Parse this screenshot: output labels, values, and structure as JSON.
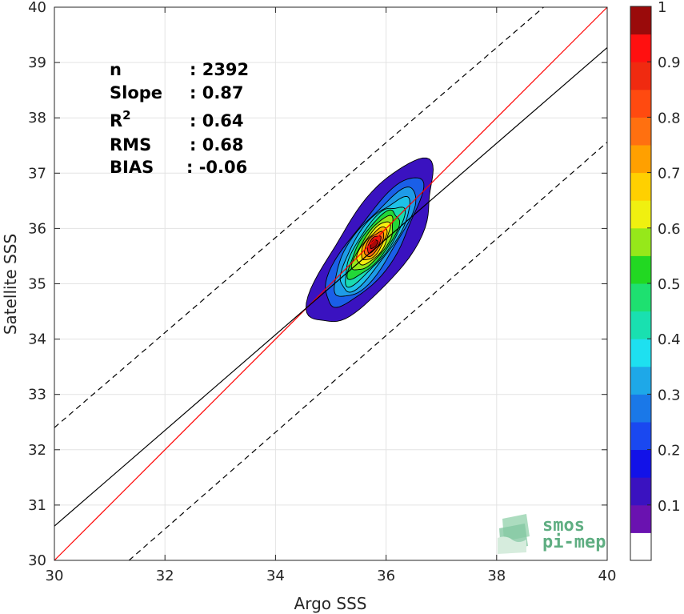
{
  "chart_data": {
    "type": "scatter",
    "subtype": "density-contour",
    "xlabel": "Argo SSS",
    "ylabel": "Satellite SSS",
    "xlim": [
      30,
      40
    ],
    "ylim": [
      30,
      40
    ],
    "xticks": [
      30,
      32,
      34,
      36,
      38,
      40
    ],
    "yticks": [
      30,
      31,
      32,
      33,
      34,
      35,
      36,
      37,
      38,
      39,
      40
    ],
    "grid": true,
    "stats": [
      {
        "label": "n",
        "value": ": 2392"
      },
      {
        "label": "Slope",
        "value": ": 0.87"
      },
      {
        "label": "R",
        "sup": "2",
        "value": ": 0.64"
      },
      {
        "label": "RMS",
        "value": ": 0.68"
      },
      {
        "label": "BIAS",
        "value": ": -0.06"
      }
    ],
    "lines": [
      {
        "name": "one-to-one",
        "color": "#ff0000",
        "style": "solid",
        "points": [
          [
            30,
            30
          ],
          [
            40,
            40
          ]
        ]
      },
      {
        "name": "regression",
        "color": "#000000",
        "style": "solid",
        "points": [
          [
            30,
            30.62
          ],
          [
            40,
            39.27
          ]
        ]
      },
      {
        "name": "upper-bound",
        "color": "#000000",
        "style": "dashed",
        "points": [
          [
            30,
            32.4
          ],
          [
            38.85,
            40
          ]
        ]
      },
      {
        "name": "lower-bound",
        "color": "#000000",
        "style": "dashed",
        "points": [
          [
            31.35,
            30
          ],
          [
            40,
            37.56
          ]
        ]
      }
    ],
    "density": {
      "center": [
        35.78,
        35.72
      ],
      "angle_deg": 55,
      "contours": [
        {
          "level": 0.05,
          "color": "#3a12c0",
          "half_major": 1.75,
          "half_minor": 0.62
        },
        {
          "level": 0.2,
          "color": "#1a5fe8",
          "half_major": 1.4,
          "half_minor": 0.42
        },
        {
          "level": 0.3,
          "color": "#1e9be8",
          "half_major": 1.18,
          "half_minor": 0.36
        },
        {
          "level": 0.35,
          "color": "#1ec2e8",
          "half_major": 1.0,
          "half_minor": 0.31
        },
        {
          "level": 0.4,
          "color": "#19dbb0",
          "half_major": 0.85,
          "half_minor": 0.27
        },
        {
          "level": 0.5,
          "color": "#22d838",
          "half_major": 0.72,
          "half_minor": 0.24
        },
        {
          "level": 0.55,
          "color": "#96e81a",
          "half_major": 0.58,
          "half_minor": 0.2
        },
        {
          "level": 0.6,
          "color": "#f5ee10",
          "half_major": 0.46,
          "half_minor": 0.17
        },
        {
          "level": 0.7,
          "color": "#ffb300",
          "half_major": 0.35,
          "half_minor": 0.14
        },
        {
          "level": 0.8,
          "color": "#ff6a10",
          "half_major": 0.26,
          "half_minor": 0.11
        },
        {
          "level": 0.9,
          "color": "#e81a12",
          "half_major": 0.18,
          "half_minor": 0.08
        },
        {
          "level": 1.0,
          "color": "#a80a0a",
          "half_major": 0.09,
          "half_minor": 0.05
        }
      ]
    },
    "colorbar": {
      "ticks": [
        "0.1",
        "0.2",
        "0.3",
        "0.4",
        "0.5",
        "0.6",
        "0.7",
        "0.8",
        "0.9",
        "1"
      ],
      "tick_values": [
        0.1,
        0.2,
        0.3,
        0.4,
        0.5,
        0.6,
        0.7,
        0.8,
        0.9,
        1.0
      ],
      "range": [
        0,
        1
      ],
      "bands": [
        {
          "from": 0.0,
          "to": 0.05,
          "color": "#ffffff"
        },
        {
          "from": 0.05,
          "to": 0.1,
          "color": "#6a12b0"
        },
        {
          "from": 0.1,
          "to": 0.15,
          "color": "#3a12c0"
        },
        {
          "from": 0.15,
          "to": 0.2,
          "color": "#1212e8"
        },
        {
          "from": 0.2,
          "to": 0.25,
          "color": "#1a48f0"
        },
        {
          "from": 0.25,
          "to": 0.3,
          "color": "#1a78e8"
        },
        {
          "from": 0.3,
          "to": 0.35,
          "color": "#1ea8e8"
        },
        {
          "from": 0.35,
          "to": 0.4,
          "color": "#1ee0f0"
        },
        {
          "from": 0.4,
          "to": 0.45,
          "color": "#19e0b0"
        },
        {
          "from": 0.45,
          "to": 0.5,
          "color": "#1ee070"
        },
        {
          "from": 0.5,
          "to": 0.55,
          "color": "#22d822"
        },
        {
          "from": 0.55,
          "to": 0.6,
          "color": "#96e81a"
        },
        {
          "from": 0.6,
          "to": 0.65,
          "color": "#f0f010"
        },
        {
          "from": 0.65,
          "to": 0.7,
          "color": "#ffd000"
        },
        {
          "from": 0.7,
          "to": 0.75,
          "color": "#ffa000"
        },
        {
          "from": 0.75,
          "to": 0.8,
          "color": "#ff7010"
        },
        {
          "from": 0.8,
          "to": 0.85,
          "color": "#ff4a10"
        },
        {
          "from": 0.85,
          "to": 0.9,
          "color": "#f02a10"
        },
        {
          "from": 0.9,
          "to": 0.95,
          "color": "#ff1010"
        },
        {
          "from": 0.95,
          "to": 1.0,
          "color": "#9a0a0a"
        }
      ]
    }
  },
  "logo": {
    "line1": "smos",
    "line2": "pi-mep",
    "color": "#5fae82"
  }
}
